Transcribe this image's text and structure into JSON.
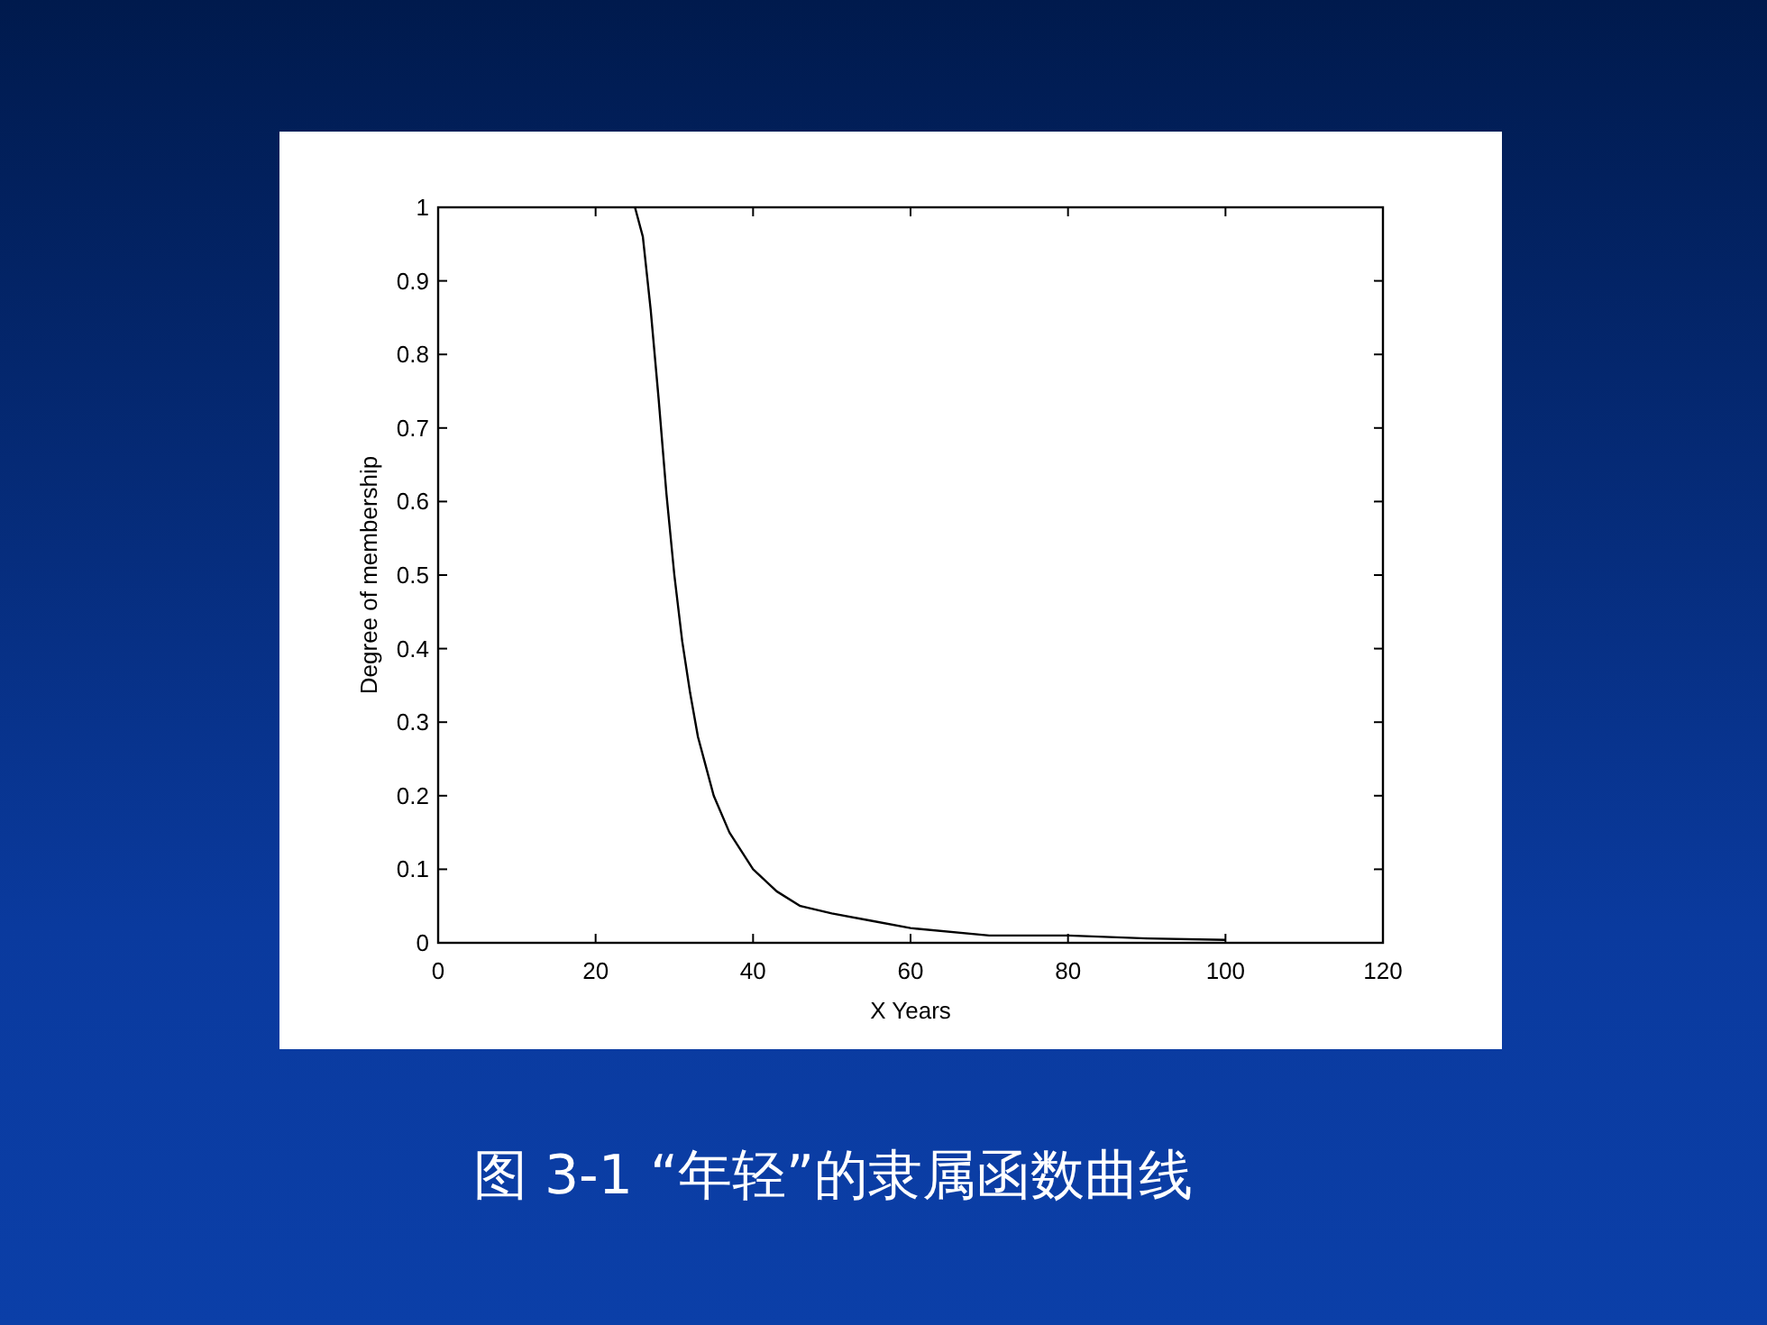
{
  "chart_data": {
    "type": "line",
    "title": "图 3-1 “年轻”的隶属函数曲线",
    "xlabel": "X Years",
    "ylabel": "Degree of membership",
    "xlim": [
      0,
      120
    ],
    "ylim": [
      0,
      1
    ],
    "xticks": [
      0,
      20,
      40,
      60,
      80,
      100,
      120
    ],
    "yticks": [
      0,
      0.1,
      0.2,
      0.3,
      0.4,
      0.5,
      0.6,
      0.7,
      0.8,
      0.9,
      1
    ],
    "grid": false,
    "series": [
      {
        "color": "#000000",
        "x": [
          25,
          26,
          27,
          28,
          29,
          30,
          31,
          32,
          33,
          34,
          35,
          37,
          40,
          43,
          46,
          50,
          55,
          60,
          70,
          80,
          90,
          100
        ],
        "values": [
          1,
          0.96,
          0.86,
          0.74,
          0.61,
          0.5,
          0.41,
          0.34,
          0.28,
          0.24,
          0.2,
          0.15,
          0.1,
          0.07,
          0.05,
          0.04,
          0.03,
          0.02,
          0.01,
          0.01,
          0.006,
          0.004
        ]
      }
    ]
  }
}
